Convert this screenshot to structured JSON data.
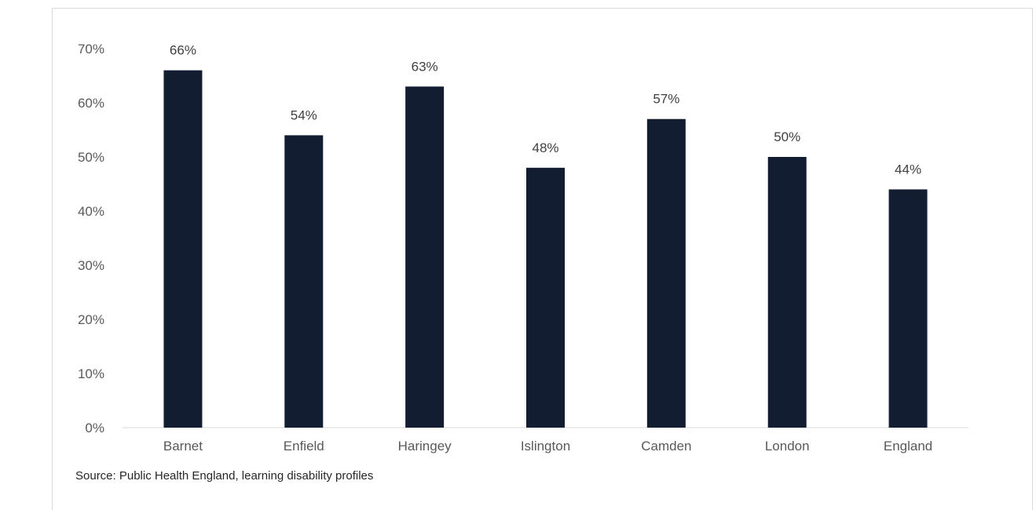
{
  "chart_data": {
    "type": "bar",
    "categories": [
      "Barnet",
      "Enfield",
      "Haringey",
      "Islington",
      "Camden",
      "London",
      "England"
    ],
    "values": [
      66,
      54,
      63,
      48,
      57,
      50,
      44
    ],
    "value_labels": [
      "66%",
      "54%",
      "63%",
      "48%",
      "57%",
      "50%",
      "44%"
    ],
    "y_ticks": [
      {
        "value": 0,
        "label": "0%"
      },
      {
        "value": 10,
        "label": "10%"
      },
      {
        "value": 20,
        "label": "20%"
      },
      {
        "value": 30,
        "label": "30%"
      },
      {
        "value": 40,
        "label": "40%"
      },
      {
        "value": 50,
        "label": "50%"
      },
      {
        "value": 60,
        "label": "60%"
      },
      {
        "value": 70,
        "label": "70%"
      }
    ],
    "ylim": [
      0,
      70
    ],
    "grid": false,
    "bar_color": "#131d31",
    "title": "",
    "xlabel": "",
    "ylabel": ""
  },
  "source": "Source: Public Health England, learning disability profiles"
}
